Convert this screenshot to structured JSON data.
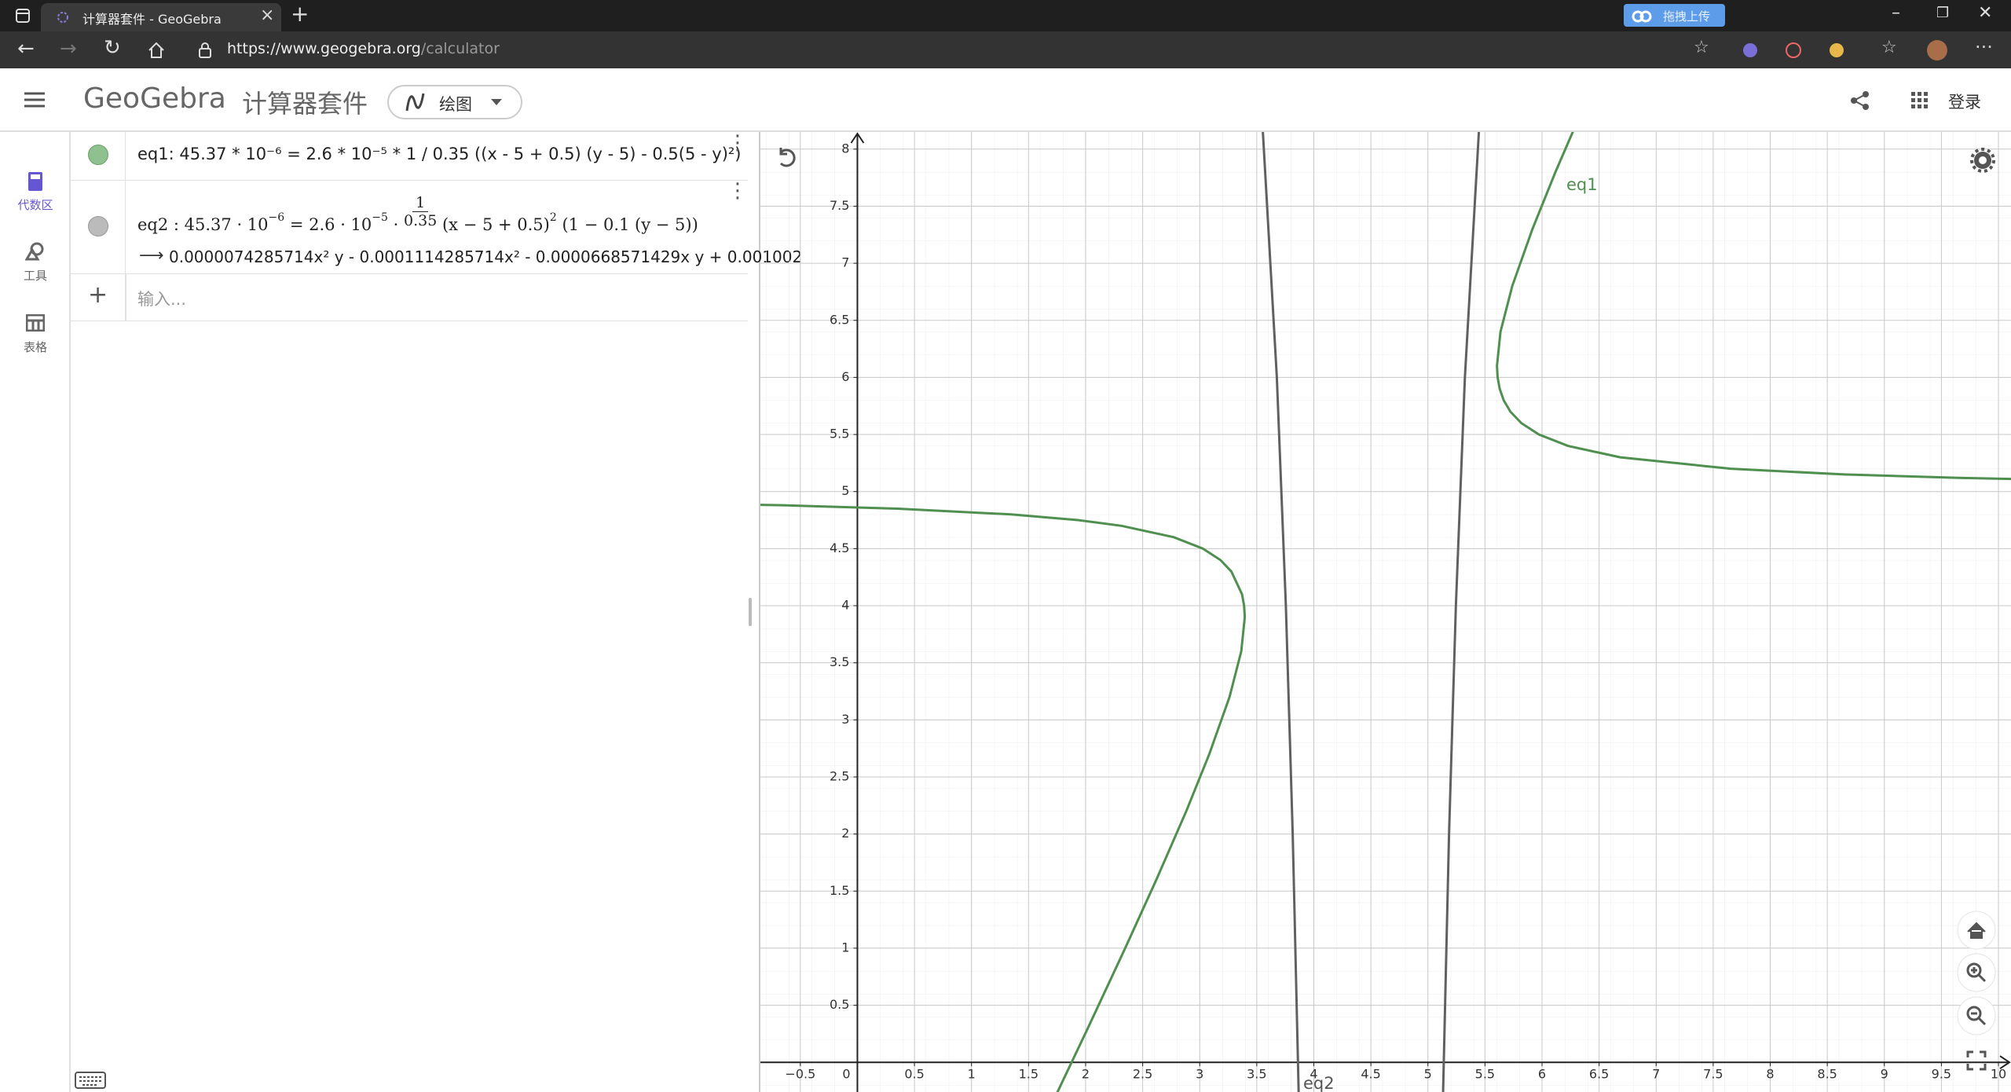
{
  "browser": {
    "tab_title": "计算器套件 - GeoGebra",
    "url_host": "https://www.geogebra.org",
    "url_path": "/calculator",
    "upload_button": "拖拽上传"
  },
  "app": {
    "logo": "GeoGebra",
    "suite": "计算器套件",
    "mode": "绘图",
    "login": "登录"
  },
  "sidebar": [
    "代数区",
    "工具",
    "表格"
  ],
  "algebra": {
    "eq1": "eq1: 45.37 * 10⁻⁶ = 2.6 * 10⁻⁵ * 1 / 0.35 ((x - 5 + 0.5) (y - 5) - 0.5(5 - y)²)",
    "eq2": {
      "lhs": "eq2 : 45.37 · 10",
      "lhs_exp": "−6",
      "mid": "= 2.6 · 10",
      "mid_exp": "−5",
      "dot": "·",
      "numerator": "1",
      "denominator": "0.35",
      "factor": "(x − 5 + 0.5)",
      "factor_exp": "2",
      "tail": "(1 − 0.1 (y − 5))"
    },
    "eq2_result": "0.0000074285714x² y - 0.0001114285714x² - 0.0000668571429x y + 0.001002",
    "input_placeholder": "输入..."
  },
  "graph": {
    "xlim": [
      -0.85,
      10.11
    ],
    "ylim": [
      -0.26,
      8.15
    ],
    "xticks": [
      {
        "value": -0.5,
        "label": "−0.5"
      },
      0,
      0.5,
      1,
      1.5,
      2,
      2.5,
      3,
      3.5,
      4,
      4.5,
      5,
      5.5,
      6,
      6.5,
      7,
      7.5,
      8,
      8.5,
      9,
      9.5,
      10
    ],
    "yticks": [
      0.5,
      1,
      1.5,
      2,
      2.5,
      3,
      3.5,
      4,
      4.5,
      5,
      5.5,
      6,
      6.5,
      7,
      7.5,
      8
    ],
    "curve_labels": [
      "eq1",
      "eq2"
    ]
  }
}
